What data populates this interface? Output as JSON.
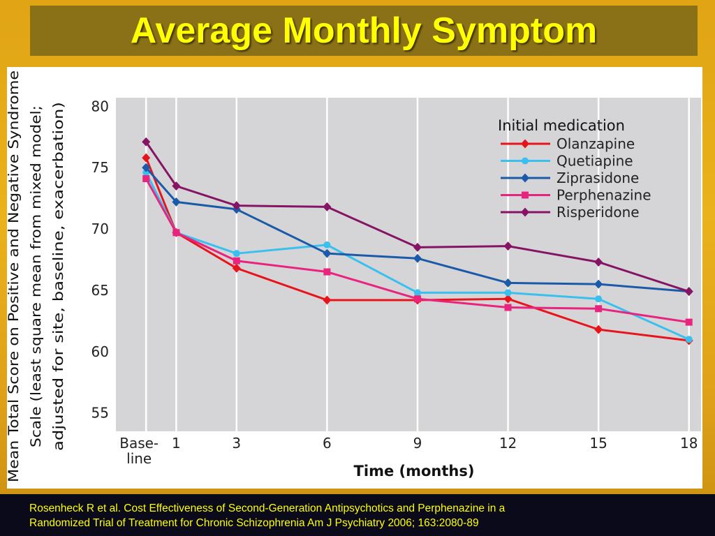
{
  "slide": {
    "title": "Average Monthly Symptom",
    "citation_line1": "Rosenheck R et al. Cost Effectiveness  of Second-Generation Antipsychotics and Perphenazine in a",
    "citation_line2": "Randomized Trial of Treatment for Chronic Schizophrenia Am J Psychiatry 2006; 163:2080-89"
  },
  "chart_data": {
    "type": "line",
    "title": "",
    "xlabel": "Time (months)",
    "ylabel_lines": [
      "Mean Total Score on Positive and Negative Syndrome",
      "Scale (least square mean from mixed model;",
      "adjusted for site, baseline, exacerbation)"
    ],
    "x_ticks": [
      {
        "value": 0,
        "label": [
          "Base-",
          "line"
        ]
      },
      {
        "value": 1,
        "label": [
          "1"
        ]
      },
      {
        "value": 3,
        "label": [
          "3"
        ]
      },
      {
        "value": 6,
        "label": [
          "6"
        ]
      },
      {
        "value": 9,
        "label": [
          "9"
        ]
      },
      {
        "value": 12,
        "label": [
          "12"
        ]
      },
      {
        "value": 15,
        "label": [
          "15"
        ]
      },
      {
        "value": 18,
        "label": [
          "18"
        ]
      }
    ],
    "xlim": [
      -1,
      18.4
    ],
    "ylim": [
      53.5,
      80.7
    ],
    "y_ticks": [
      55,
      60,
      65,
      70,
      75,
      80
    ],
    "grid": "vertical",
    "legend": {
      "title": "Initial medication",
      "placement": "top-right"
    },
    "series": [
      {
        "name": "Olanzapine",
        "color": "#e8141c",
        "marker": "diamond",
        "x": [
          0,
          1,
          3,
          6,
          9,
          12,
          15,
          18
        ],
        "y": [
          75.8,
          69.7,
          66.8,
          64.2,
          64.2,
          64.3,
          61.8,
          60.9
        ]
      },
      {
        "name": "Quetiapine",
        "color": "#39c0ef",
        "marker": "circle",
        "x": [
          0,
          1,
          3,
          6,
          9,
          12,
          15,
          18
        ],
        "y": [
          74.6,
          69.7,
          68.0,
          68.7,
          64.8,
          64.8,
          64.3,
          61.0
        ]
      },
      {
        "name": "Ziprasidone",
        "color": "#1a5aa8",
        "marker": "diamond",
        "x": [
          0,
          1,
          3,
          6,
          9,
          12,
          15,
          18
        ],
        "y": [
          75.0,
          72.2,
          71.6,
          68.0,
          67.6,
          65.6,
          65.5,
          64.9
        ]
      },
      {
        "name": "Perphenazine",
        "color": "#e8247e",
        "marker": "square",
        "x": [
          0,
          1,
          3,
          6,
          9,
          12,
          15,
          18
        ],
        "y": [
          74.1,
          69.7,
          67.4,
          66.5,
          64.3,
          63.6,
          63.5,
          62.4
        ]
      },
      {
        "name": "Risperidone",
        "color": "#861464",
        "marker": "diamond",
        "x": [
          0,
          1,
          3,
          6,
          9,
          12,
          15,
          18
        ],
        "y": [
          77.1,
          73.5,
          71.9,
          71.8,
          68.5,
          68.6,
          67.3,
          64.9
        ]
      }
    ]
  }
}
